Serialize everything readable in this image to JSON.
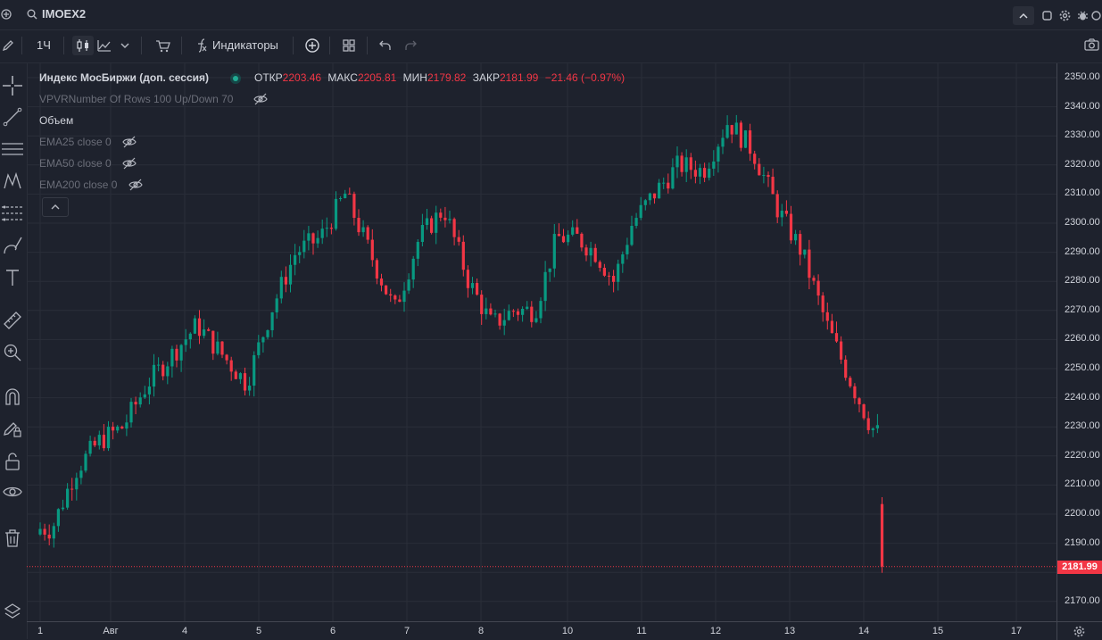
{
  "topbar": {
    "symbol": "IMOEX2"
  },
  "toolbar": {
    "interval": "1Ч",
    "indicators_label": "Индикаторы"
  },
  "legend": {
    "title": "Индекс МосБиржи (доп. сессия)",
    "open_label": "ОТКР",
    "open_value": "2203.46",
    "high_label": "МАКС",
    "high_value": "2205.81",
    "low_label": "МИН",
    "low_value": "2179.82",
    "close_label": "ЗАКР",
    "close_value": "2181.99",
    "change": "−21.46 (−0.97%)",
    "indicators": [
      "VPVRNumber Of Rows 100 Up/Down 70",
      "Объем",
      "EMA25 close 0",
      "EMA50 close 0",
      "EMA200 close 0"
    ]
  },
  "price_axis": {
    "ticks": [
      "2350.00",
      "2340.00",
      "2330.00",
      "2320.00",
      "2310.00",
      "2300.00",
      "2290.00",
      "2280.00",
      "2270.00",
      "2260.00",
      "2250.00",
      "2240.00",
      "2230.00",
      "2220.00",
      "2210.00",
      "2200.00",
      "2190.00",
      "2180.00",
      "2170.00"
    ],
    "last_price": "2181.99"
  },
  "time_axis": {
    "ticks": [
      "1",
      "Авг",
      "4",
      "5",
      "6",
      "7",
      "8",
      "10",
      "11",
      "12",
      "13",
      "14",
      "15",
      "17"
    ]
  },
  "colors": {
    "bg": "#1e222d",
    "up": "#089981",
    "down": "#f23645",
    "grid": "#2a2e39"
  },
  "chart_data": {
    "type": "candlestick",
    "title": "Индекс МосБиржи (доп. сессия)",
    "interval": "1Ч",
    "ylim": [
      2165,
      2355
    ],
    "x_ticks": [
      "1",
      "Авг",
      "4",
      "5",
      "6",
      "7",
      "8",
      "10",
      "11",
      "12",
      "13",
      "14",
      "15",
      "17"
    ],
    "close_path": [
      [
        "1",
        2195
      ],
      [
        "1",
        2215
      ],
      [
        "1",
        2225
      ],
      [
        "Авг",
        2230
      ],
      [
        "Авг",
        2245
      ],
      [
        "Авг",
        2255
      ],
      [
        "4",
        2265
      ],
      [
        "4",
        2255
      ],
      [
        "4",
        2245
      ],
      [
        "5",
        2270
      ],
      [
        "5",
        2290
      ],
      [
        "5",
        2295
      ],
      [
        "6",
        2310
      ],
      [
        "6",
        2290
      ],
      [
        "6",
        2270
      ],
      [
        "7",
        2295
      ],
      [
        "7",
        2305
      ],
      [
        "7",
        2280
      ],
      [
        "8",
        2265
      ],
      [
        "8",
        2270
      ],
      [
        "8",
        2270
      ],
      [
        "8",
        2295
      ],
      [
        "10",
        2295
      ],
      [
        "10",
        2290
      ],
      [
        "10",
        2280
      ],
      [
        "10",
        2300
      ],
      [
        "11",
        2310
      ],
      [
        "11",
        2320
      ],
      [
        "11",
        2318
      ],
      [
        "12",
        2335
      ],
      [
        "12",
        2325
      ],
      [
        "12",
        2305
      ],
      [
        "13",
        2290
      ],
      [
        "13",
        2265
      ],
      [
        "13",
        2245
      ],
      [
        "14",
        2230
      ],
      [
        "14",
        2225
      ],
      [
        "14",
        2240
      ],
      [
        "14",
        2203
      ],
      [
        "14",
        2182
      ]
    ],
    "last": {
      "open": 2203.46,
      "high": 2205.81,
      "low": 2179.82,
      "close": 2181.99,
      "change": -21.46,
      "change_pct": -0.97
    }
  }
}
